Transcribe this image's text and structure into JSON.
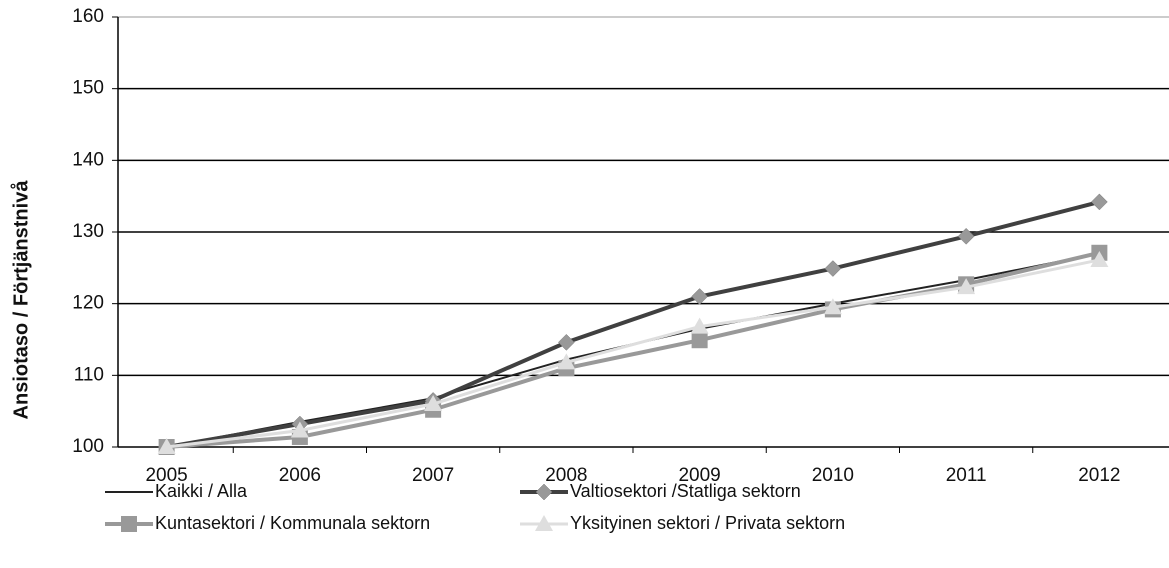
{
  "chart_data": {
    "type": "line",
    "y_label": "Ansiotaso / Förtjänstnivå",
    "categories": [
      "2005",
      "2006",
      "2007",
      "2008",
      "2009",
      "2010",
      "2011",
      "2012"
    ],
    "series": [
      {
        "name": "Kaikki / Alla",
        "color": "#222222",
        "marker": "none",
        "width": 2,
        "values": [
          100,
          103.5,
          106.8,
          112.2,
          116.5,
          120,
          123.3,
          127
        ]
      },
      {
        "name": "Valtiosektori /Statliga sektorn",
        "color": "#404040",
        "marker": "diamond",
        "marker_color": "#999999",
        "width": 4,
        "values": [
          100,
          103.2,
          106.5,
          114.6,
          121,
          124.9,
          129.4,
          134.2
        ]
      },
      {
        "name": "Kuntasektori / Kommunala sektorn",
        "color": "#999999",
        "marker": "square",
        "marker_color": "#999999",
        "width": 4,
        "values": [
          100,
          101.4,
          105.2,
          111,
          114.9,
          119.2,
          122.7,
          127.1
        ]
      },
      {
        "name": "Yksityinen sektori / Privata sektorn",
        "color": "#dedede",
        "marker": "triangle",
        "marker_color": "#dedede",
        "width": 3,
        "values": [
          100,
          102.3,
          106,
          111.8,
          116.8,
          119.5,
          122.3,
          126.1
        ]
      }
    ],
    "ylim": [
      100,
      160
    ],
    "yticks": [
      100,
      110,
      120,
      130,
      140,
      150,
      160
    ],
    "grid": true
  }
}
